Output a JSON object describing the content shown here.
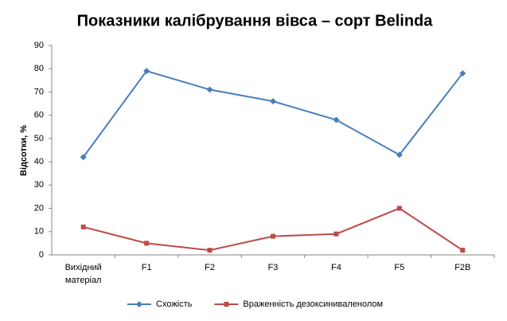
{
  "chart_data": {
    "type": "line",
    "title": "Показники калібрування вівса – сорт Belinda",
    "y_label": "Відсотки, %",
    "categories": [
      "Вихідний матеріал",
      "F1",
      "F2",
      "F3",
      "F4",
      "F5",
      "F2B"
    ],
    "series": [
      {
        "name": "Схожість",
        "color": "#4a7ebb",
        "marker": "diamond",
        "values": [
          42,
          79,
          71,
          66,
          58,
          43,
          78
        ]
      },
      {
        "name": "Враженність дезоксиниваленолом",
        "color": "#be4b48",
        "marker": "square",
        "values": [
          12,
          5,
          2,
          8,
          9,
          20,
          2
        ]
      }
    ],
    "ylim": [
      0,
      90
    ],
    "yticks": [
      0,
      10,
      20,
      30,
      40,
      50,
      60,
      70,
      80,
      90
    ],
    "grid": false,
    "legend": "bottom"
  }
}
